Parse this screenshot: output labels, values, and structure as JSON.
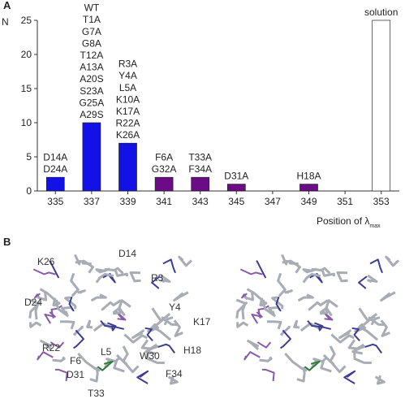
{
  "chart_data": {
    "type": "bar",
    "y_label": "N",
    "x_label": "Position of λ",
    "x_label_sub": "max",
    "categories": [
      335,
      337,
      339,
      341,
      343,
      345,
      347,
      349,
      351,
      353
    ],
    "values": [
      2,
      10,
      7,
      2,
      2,
      1,
      0,
      1,
      0,
      25
    ],
    "colors": [
      "#1212e6",
      "#1212e6",
      "#1212e6",
      "#6b0b86",
      "#6b0b86",
      "#6b0b86",
      "#6b0b86",
      "#6b0b86",
      "#6b0b86",
      "#ffffff"
    ],
    "edgecolor": "#222222",
    "bar_labels": [
      [
        "D14A",
        "D24A"
      ],
      [
        "WT",
        "T1A",
        "G7A",
        "G8A",
        "T12A",
        "A13A",
        "A20S",
        "S23A",
        "G25A",
        "A29S"
      ],
      [
        "R3A",
        "Y4A",
        "L5A",
        "K10A",
        "K17A",
        "R22A",
        "K26A"
      ],
      [
        "F6A",
        "G32A"
      ],
      [
        "T33A",
        "F34A"
      ],
      [
        "D31A"
      ],
      null,
      [
        "H18A"
      ],
      null,
      [
        "solution"
      ]
    ],
    "ylim": [
      0,
      25
    ],
    "yticks": [
      0,
      5,
      10,
      15,
      20,
      25
    ]
  },
  "panel_labels": [
    "A",
    "B"
  ],
  "structure_labels": [
    "K26",
    "D14",
    "R3",
    "D24",
    "Y4",
    "K17",
    "R22",
    "F6",
    "L5",
    "W30",
    "H18",
    "D31",
    "F34",
    "T33"
  ]
}
